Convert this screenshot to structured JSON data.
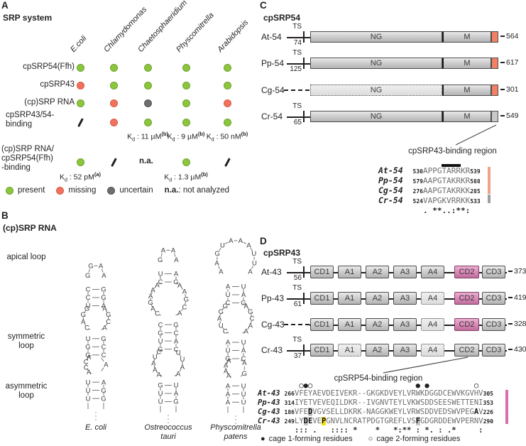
{
  "colors": {
    "present": "#8cc63e",
    "present_border": "#6fa32c",
    "missing": "#f0715c",
    "missing_border": "#d85c49",
    "uncertain": "#6d6e71",
    "uncertain_border": "#55565a",
    "tip_orange": "#f08165",
    "tip_gray": "#c9c9c9",
    "cd2_pink": "#d887b6",
    "bar_orange": "#f0a189",
    "bar_gray": "#9d9fa2",
    "bar_pink": "#d76fae",
    "highlight_yellow": "#f6e013",
    "highlight_gray": "#c6c6c6"
  },
  "panelA": {
    "label": "A",
    "title": "SRP system",
    "columns": [
      "E.coli",
      "Chlamydomonas",
      "Chaetosphaeridium",
      "Physcomitrella",
      "Arabidopsis"
    ],
    "rows": [
      {
        "label": "cpSRP54(Ffh)",
        "cells": [
          "present",
          "present",
          "present",
          "present",
          "present"
        ]
      },
      {
        "label": "cpSRP43",
        "cells": [
          "missing",
          "present",
          "present",
          "present",
          "present"
        ]
      },
      {
        "label": "(cp)SRP RNA",
        "cells": [
          "present",
          "missing",
          "uncertain",
          "present",
          "missing"
        ]
      },
      {
        "label": "cpSRP43/54-\nbinding",
        "cells": [
          "slash",
          "missing",
          "present",
          "present",
          "present"
        ],
        "kd": [
          {
            "col": 2,
            "label": "K_d : 11 µM^(b)"
          },
          {
            "col": 3,
            "label": "K_d : 9 µM^(b)"
          },
          {
            "col": 4,
            "label": "K_d : 50 nM^(b)"
          }
        ]
      },
      {
        "label": "(cp)SRP RNA/\ncpSRP54(Ffh)\n-binding",
        "cells": [
          "present",
          "slash",
          "na",
          "present",
          "slash"
        ],
        "kd": [
          {
            "col": 0,
            "label": "K_d : 52 pM^(a)"
          },
          {
            "col": 3,
            "label": "K_d : 1.3 µM^(b)"
          }
        ]
      }
    ],
    "na_label": "n.a.",
    "legend": [
      {
        "type": "present",
        "label": "present"
      },
      {
        "type": "missing",
        "label": "missing"
      },
      {
        "type": "uncertain",
        "label": "uncertain"
      }
    ],
    "legend_na_term": "n.a.",
    "legend_na_rest": ": not analyzed"
  },
  "panelB": {
    "label": "B",
    "title": "(cp)SRP RNA",
    "loop_labels": [
      "apical loop",
      "symmetric\nloop",
      "asymmetric\nloop"
    ],
    "structures": [
      {
        "name": "E. coli",
        "segments": [
          {
            "type": "loop",
            "top": [
              "G",
              "A"
            ],
            "left": [
              "G"
            ],
            "right": [
              "A"
            ]
          },
          {
            "type": "stem",
            "pairs": [
              [
                "C",
                "G"
              ],
              [
                "C",
                "G"
              ],
              [
                "U",
                "A"
              ]
            ]
          },
          {
            "type": "loop",
            "left": [
              "G",
              "G",
              "A",
              "C"
            ],
            "right": [
              "A",
              "G",
              "C",
              "A"
            ]
          },
          {
            "type": "stem",
            "pairs": [
              [
                "U",
                "G"
              ],
              [
                "G",
                "C"
              ],
              [
                "G",
                "C"
              ]
            ]
          },
          {
            "type": "loop",
            "left": [
              "A",
              "C",
              "C",
              "A"
            ],
            "right": [
              "A"
            ]
          },
          {
            "type": "stem",
            "pairs": [
              [
                "U",
                "A"
              ],
              [
                "U",
                "G"
              ],
              [
                "U",
                "G"
              ]
            ]
          },
          {
            "type": "tail"
          }
        ]
      },
      {
        "name": "Ostreococcus\ntauri",
        "segments": [
          {
            "type": "loop",
            "top": [
              "A",
              "A"
            ],
            "left": [
              "G"
            ],
            "right": [
              "A"
            ]
          },
          {
            "type": "stem",
            "pairs": [
              [
                "U",
                "A"
              ],
              [
                "C",
                "G"
              ]
            ]
          },
          {
            "type": "loop",
            "left": [
              "A",
              "A",
              "A",
              "G",
              "A",
              "C"
            ],
            "right": [
              "A",
              "A",
              "G",
              "C",
              "A"
            ]
          },
          {
            "type": "stem",
            "pairs": [
              [
                "C",
                "G"
              ],
              [
                "G",
                "C"
              ],
              [
                "U",
                "A"
              ],
              [
                "G",
                "C"
              ]
            ]
          },
          {
            "type": "loop",
            "left": [
              "C",
              "U",
              "A",
              "A",
              "A"
            ],
            "right": [
              "U",
              "U",
              "A",
              "A"
            ]
          },
          {
            "type": "stem",
            "pairs": [
              [
                "G",
                "U"
              ],
              [
                "U",
                "A"
              ],
              [
                "U",
                "G"
              ]
            ]
          },
          {
            "type": "tail"
          }
        ]
      },
      {
        "name": "Physcomitrella\npatens",
        "segments": [
          {
            "type": "loop",
            "top": [
              "U",
              "A",
              "A",
              "A"
            ],
            "left": [
              "G",
              "A",
              "A"
            ],
            "right": [
              "U",
              "U",
              "A"
            ]
          },
          {
            "type": "stem",
            "pairs": [
              [
                "A",
                "U"
              ],
              [
                "U",
                "A"
              ],
              [
                "C",
                "G"
              ]
            ]
          },
          {
            "type": "loop",
            "left": [
              "G",
              "G",
              "A",
              "U",
              "C"
            ],
            "right": [
              "A",
              "G",
              "C",
              "A",
              "A"
            ]
          },
          {
            "type": "stem",
            "pairs": [
              [
                "A",
                "U"
              ],
              [
                "U",
                "A"
              ],
              [
                "G",
                "C"
              ]
            ]
          },
          {
            "type": "loop",
            "left": [
              "A",
              "A",
              "A",
              "A"
            ],
            "right": [
              "A",
              "G"
            ]
          },
          {
            "type": "stem",
            "pairs": [
              [
                "A",
                "U"
              ],
              [
                "A",
                "U"
              ],
              [
                "A",
                "U"
              ]
            ]
          },
          {
            "type": "tail"
          }
        ]
      }
    ]
  },
  "panelC": {
    "label": "C",
    "title": "cpSRP54",
    "domain_labels": [
      "NG",
      "M"
    ],
    "rows": [
      {
        "name": "At-54",
        "ts": "TS",
        "ts_num": "74",
        "dashed_prefix": false,
        "ng_style": "solid",
        "tip": "orange",
        "end": "564"
      },
      {
        "name": "Pp-54",
        "ts": "TS",
        "ts_num": "125",
        "dashed_prefix": false,
        "ng_style": "solid",
        "tip": "orange",
        "end": "617"
      },
      {
        "name": "Cg-54",
        "ts": "",
        "ts_num": "",
        "dashed_prefix": true,
        "ng_style": "dotted",
        "tip": "orange",
        "end": "301"
      },
      {
        "name": "Cr-54",
        "ts": "TS",
        "ts_num": "65",
        "dashed_prefix": false,
        "ng_style": "solid",
        "tip": "gray",
        "end": "549"
      }
    ],
    "binding_label": "cpSRP43-binding region",
    "alignment": {
      "overline_start": 4,
      "overline_len": 4,
      "rows": [
        {
          "name": "At-54",
          "start": "530",
          "seq": "APPGTARRKR",
          "end": "539",
          "bar": "orange"
        },
        {
          "name": "Pp-54",
          "start": "579",
          "seq": "AAPGTAKRKR",
          "end": "588",
          "bar": "orange"
        },
        {
          "name": "Cg-54",
          "start": "276",
          "seq": "AAPGTAKRKK",
          "end": "285",
          "bar": "orange"
        },
        {
          "name": "Cr-54",
          "start": "524",
          "seq": "VAPGKVRRKK",
          "end": "533",
          "bar": "gray"
        }
      ],
      "conservation": ". **..:**:"
    }
  },
  "panelD": {
    "label": "D",
    "title": "cpSRP43",
    "rows": [
      {
        "name": "At-43",
        "ts": "TS",
        "ts_num": "56",
        "dashed_prefix": false,
        "end": "373",
        "domains": [
          {
            "label": "CD1",
            "style": "solid",
            "color": "gray"
          },
          {
            "label": "A1",
            "style": "solid",
            "color": "gray"
          },
          {
            "label": "A2",
            "style": "solid",
            "color": "gray"
          },
          {
            "label": "A3",
            "style": "solid",
            "color": "gray"
          },
          {
            "label": "A4",
            "style": "solid",
            "color": "gray"
          },
          {
            "label": "CD2",
            "style": "solid",
            "color": "pink"
          },
          {
            "label": "CD3",
            "style": "solid",
            "color": "gray"
          }
        ]
      },
      {
        "name": "Pp-43",
        "ts": "TS",
        "ts_num": "61",
        "dashed_prefix": false,
        "end": "419",
        "domains": [
          {
            "label": "CD1",
            "style": "solid",
            "color": "gray"
          },
          {
            "label": "A1",
            "style": "solid",
            "color": "gray"
          },
          {
            "label": "A2",
            "style": "solid",
            "color": "gray"
          },
          {
            "label": "A3",
            "style": "solid",
            "color": "gray"
          },
          {
            "label": "A4",
            "style": "dotted",
            "color": "gray"
          },
          {
            "label": "CD2",
            "style": "solid",
            "color": "pink"
          },
          {
            "label": "CD3",
            "style": "solid",
            "color": "gray"
          }
        ]
      },
      {
        "name": "Cg-43",
        "ts": "",
        "ts_num": "",
        "dashed_prefix": true,
        "end": "328",
        "domains": [
          {
            "label": "CD1",
            "style": "solid",
            "color": "gray"
          },
          {
            "label": "A1",
            "style": "solid",
            "color": "gray"
          },
          {
            "label": "A2",
            "style": "solid",
            "color": "gray"
          },
          {
            "label": "A3",
            "style": "solid",
            "color": "gray"
          },
          {
            "label": "A4",
            "style": "dotted",
            "color": "gray"
          },
          {
            "label": "CD2",
            "style": "solid",
            "color": "pink"
          },
          {
            "label": "CD3",
            "style": "solid",
            "color": "gray"
          }
        ]
      },
      {
        "name": "Cr-43",
        "ts": "TS",
        "ts_num": "37",
        "dashed_prefix": false,
        "end": "430",
        "domains": [
          {
            "label": "CD1",
            "style": "solid",
            "color": "gray"
          },
          {
            "label": "A1",
            "style": "dotted",
            "color": "gray"
          },
          {
            "label": "A2",
            "style": "solid",
            "color": "gray"
          },
          {
            "label": "A3",
            "style": "solid",
            "color": "gray"
          },
          {
            "label": "A4",
            "style": "dotted",
            "color": "gray"
          },
          {
            "label": "CD2",
            "style": "solid",
            "color": "gray"
          },
          {
            "label": "CD3",
            "style": "solid",
            "color": "gray"
          }
        ]
      }
    ],
    "binding_label": "cpSRP54-binding region",
    "alignment": {
      "circles": " ○●○                       ● ●          ○ ",
      "rows": [
        {
          "name": "At-43",
          "start": "266",
          "seq": "VFEYAEVDEIVEKR--GKGKDVEYLVRWKDGGDCEWVKGVHV",
          "end": "305",
          "marks": []
        },
        {
          "name": "Pp-43",
          "start": "314",
          "seq": "IYETVEVEQILDKR--IVGNVTEYLVKWSDDSEESWETTENI",
          "end": "353",
          "marks": []
        },
        {
          "name": "Cg-43",
          "start": "186",
          "seq": "VFEDVGVSELLDKRK-NAGGKWEYLVRWSDDVEDSWVPEGAV",
          "end": "226",
          "marks": [
            {
              "col": 3,
              "type": "gray"
            },
            {
              "col": 40,
              "type": "bold"
            }
          ]
        },
        {
          "name": "Cr-43",
          "start": "249",
          "seq": "LYDEVEPGNVLNCRATPDGTGREFLVSFGDGRDDEWVPERNV",
          "end": "290",
          "marks": [
            {
              "col": 2,
              "type": "gray"
            },
            {
              "col": 3,
              "type": "bold"
            },
            {
              "col": 6,
              "type": "yellow"
            },
            {
              "col": 27,
              "type": "gray"
            }
          ]
        }
      ],
      "conservation": "::: .   :::: *    *   *:** : *. : .*     :"
    },
    "legend": [
      {
        "icon": "●",
        "label": "cage 1-forming residues"
      },
      {
        "icon": "○",
        "label": "cage 2-forming residues"
      }
    ]
  }
}
